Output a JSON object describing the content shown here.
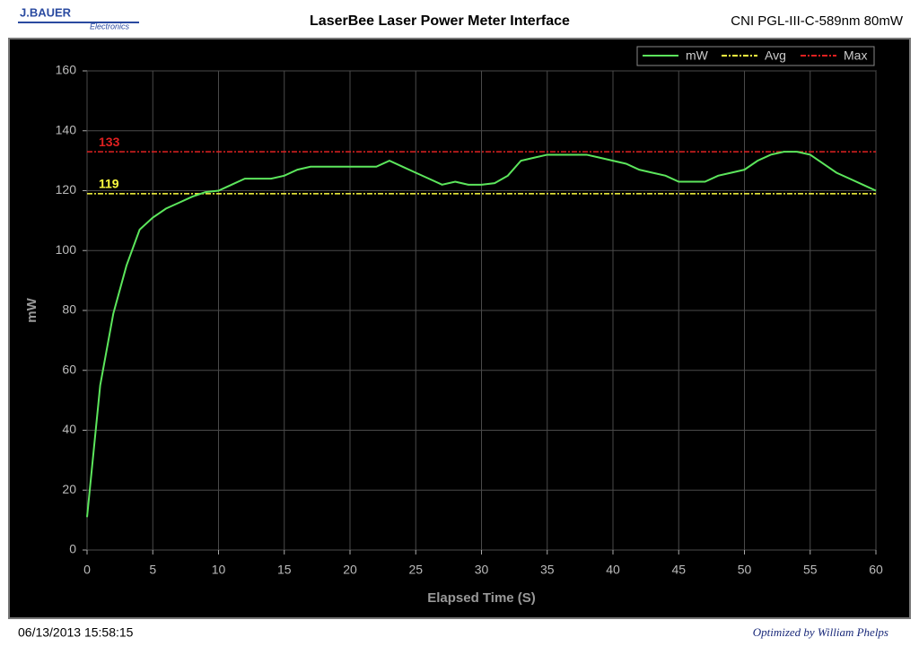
{
  "header": {
    "logo": "J.BAUER",
    "logo_sub": "Electronics",
    "device": "CNI PGL-III-C-589nm 80mW"
  },
  "footer": {
    "timestamp": "06/13/2013 15:58:15",
    "credit": "Optimized by William Phelps"
  },
  "chart_data": {
    "type": "line",
    "title": "LaserBee Laser Power Meter Interface",
    "x_label": "Elapsed Time (S)",
    "y_label": "mW",
    "x": [
      0,
      1,
      2,
      3,
      4,
      5,
      6,
      7,
      8,
      9,
      10,
      11,
      12,
      13,
      14,
      15,
      16,
      17,
      18,
      19,
      20,
      21,
      22,
      23,
      24,
      25,
      26,
      27,
      28,
      29,
      30,
      31,
      32,
      33,
      34,
      35,
      36,
      37,
      38,
      39,
      40,
      41,
      42,
      43,
      44,
      45,
      46,
      47,
      48,
      49,
      50,
      51,
      52,
      53,
      54,
      55,
      56,
      57,
      58,
      59,
      60
    ],
    "series": [
      {
        "name": "mW",
        "color": "#5ce65c",
        "values": [
          11,
          55,
          79,
          95,
          107,
          111,
          114,
          116,
          118,
          119.5,
          120,
          122,
          124,
          124,
          124,
          125,
          127,
          128,
          128,
          128,
          128,
          128,
          128,
          130,
          128,
          126,
          124,
          122,
          123,
          122,
          122,
          122.5,
          125,
          130,
          131,
          132,
          132,
          132,
          132,
          131,
          130,
          129,
          127,
          126,
          125,
          123,
          123,
          123,
          125,
          126,
          127,
          130,
          132,
          133,
          133,
          132,
          129,
          126,
          124,
          122,
          120
        ]
      }
    ],
    "reference_lines": [
      {
        "name": "Avg",
        "value": 119,
        "color": "#ffff40"
      },
      {
        "name": "Max",
        "value": 133,
        "color": "#e02020"
      }
    ],
    "xlim": [
      0,
      60
    ],
    "xticks": [
      0,
      5,
      10,
      15,
      20,
      25,
      30,
      35,
      40,
      45,
      50,
      55,
      60
    ],
    "ylim": [
      0,
      160
    ],
    "yticks": [
      0,
      20,
      40,
      60,
      80,
      100,
      120,
      140,
      160
    ],
    "grid": true,
    "legend": "top-right"
  }
}
